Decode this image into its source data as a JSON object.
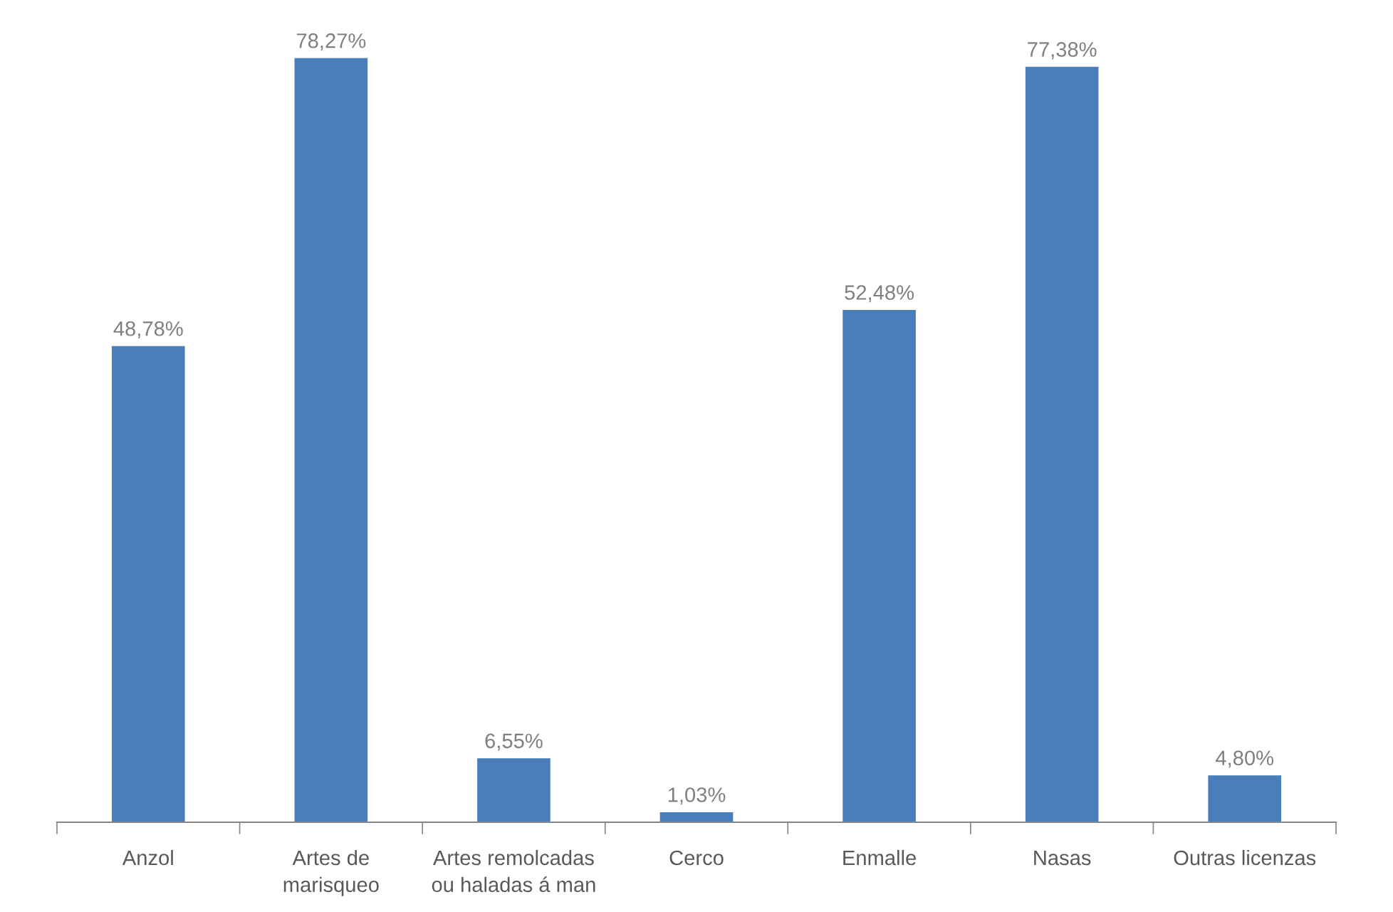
{
  "chart_data": {
    "type": "bar",
    "categories": [
      "Anzol",
      "Artes de\nmarisqueo",
      "Artes remolcadas\nou haladas á man",
      "Cerco",
      "Enmalle",
      "Nasas",
      "Outras licenzas"
    ],
    "values": [
      48.78,
      78.27,
      6.55,
      1.03,
      52.48,
      77.38,
      4.8
    ],
    "value_labels": [
      "48,78%",
      "78,27%",
      "6,55%",
      "1,03%",
      "52,48%",
      "77,38%",
      "4,80%"
    ],
    "color": "#4a7ebb",
    "grid": false,
    "legend": false
  }
}
